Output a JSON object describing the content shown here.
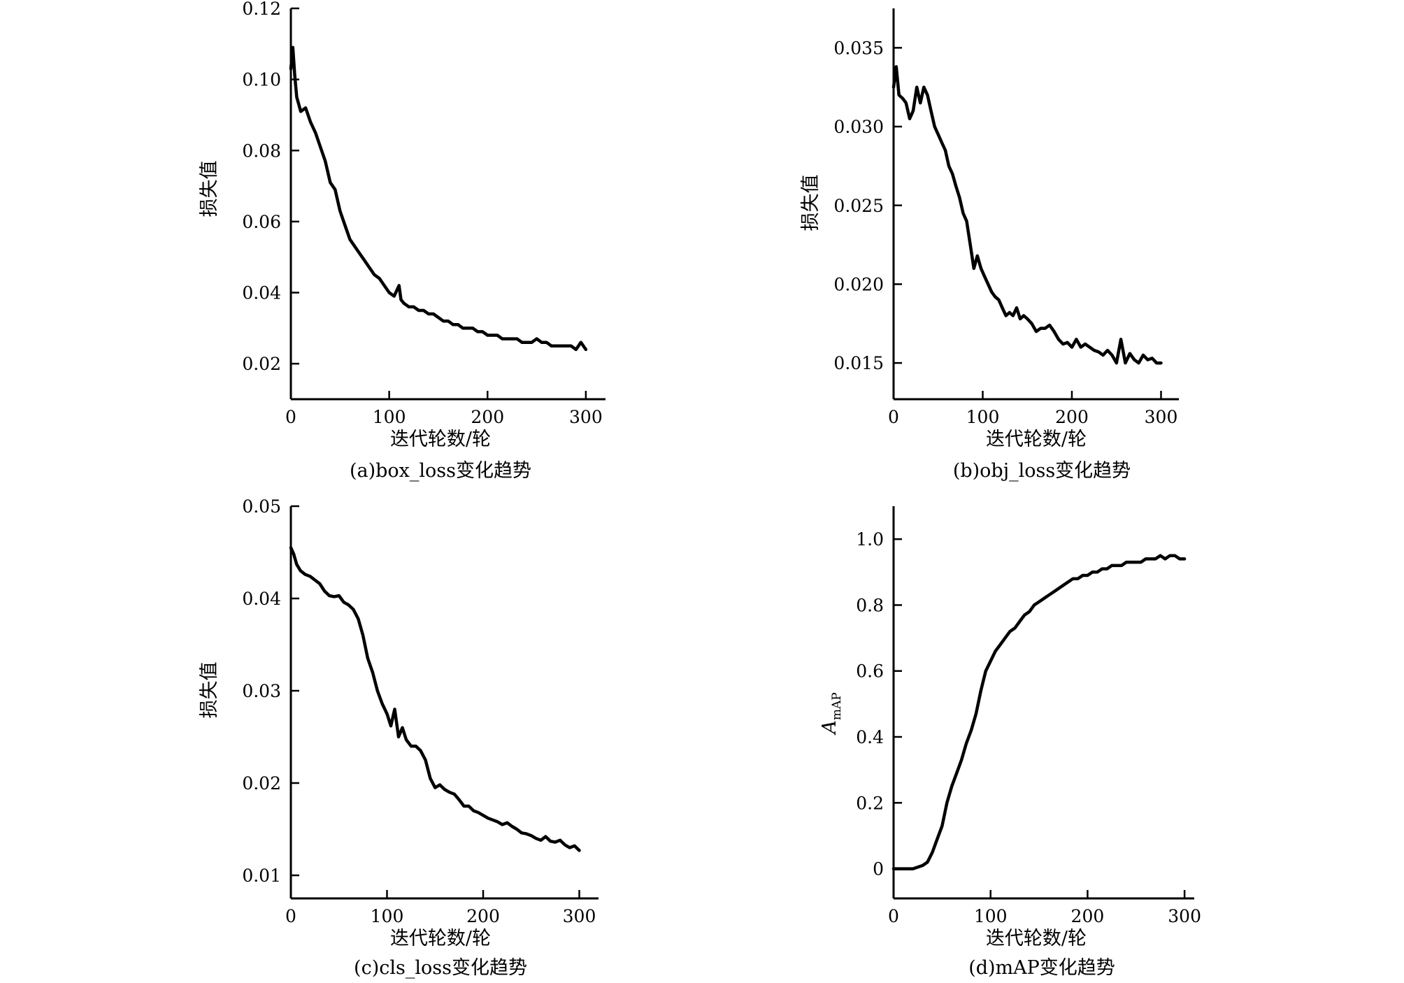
{
  "chart_data": [
    {
      "type": "line",
      "caption": "(a)box_loss变化趋势",
      "xlabel": "迭代轮数/轮",
      "ylabel": "损失值",
      "xlim": [
        0,
        320
      ],
      "ylim": [
        0.01,
        0.12
      ],
      "xticks": [
        0,
        100,
        200,
        300
      ],
      "xtick_labels": [
        "0",
        "100",
        "200",
        "300"
      ],
      "yticks": [
        0.02,
        0.04,
        0.06,
        0.08,
        0.1,
        0.12
      ],
      "ytick_labels": [
        "0.02",
        "0.04",
        "0.06",
        "0.08",
        "0.10",
        "0.12"
      ],
      "grid": false,
      "x": [
        0,
        2,
        4,
        6,
        8,
        10,
        15,
        20,
        25,
        30,
        35,
        40,
        45,
        50,
        55,
        60,
        65,
        70,
        75,
        80,
        85,
        90,
        95,
        100,
        105,
        110,
        112,
        115,
        120,
        125,
        130,
        135,
        140,
        145,
        150,
        155,
        160,
        165,
        170,
        175,
        180,
        185,
        190,
        195,
        200,
        205,
        210,
        215,
        220,
        225,
        230,
        235,
        240,
        245,
        250,
        255,
        260,
        265,
        270,
        275,
        280,
        285,
        290,
        295,
        300
      ],
      "y": [
        0.103,
        0.109,
        0.101,
        0.095,
        0.093,
        0.091,
        0.092,
        0.088,
        0.085,
        0.081,
        0.077,
        0.071,
        0.069,
        0.063,
        0.059,
        0.055,
        0.053,
        0.051,
        0.049,
        0.047,
        0.045,
        0.044,
        0.042,
        0.04,
        0.039,
        0.042,
        0.038,
        0.037,
        0.036,
        0.036,
        0.035,
        0.035,
        0.034,
        0.034,
        0.033,
        0.032,
        0.032,
        0.031,
        0.031,
        0.03,
        0.03,
        0.03,
        0.029,
        0.029,
        0.028,
        0.028,
        0.028,
        0.027,
        0.027,
        0.027,
        0.027,
        0.026,
        0.026,
        0.026,
        0.027,
        0.026,
        0.026,
        0.025,
        0.025,
        0.025,
        0.025,
        0.025,
        0.024,
        0.026,
        0.024
      ]
    },
    {
      "type": "line",
      "caption": "(b)obj_loss变化趋势",
      "xlabel": "迭代轮数/轮",
      "ylabel": "损失值",
      "xlim": [
        0,
        320
      ],
      "ylim": [
        0.0127,
        0.0375
      ],
      "xticks": [
        0,
        100,
        200,
        300
      ],
      "xtick_labels": [
        "0",
        "100",
        "200",
        "300"
      ],
      "yticks": [
        0.015,
        0.02,
        0.025,
        0.03,
        0.035
      ],
      "ytick_labels": [
        "0.015",
        "0.020",
        "0.025",
        "0.030",
        "0.035"
      ],
      "grid": false,
      "x": [
        0,
        3,
        6,
        10,
        14,
        18,
        22,
        26,
        30,
        34,
        38,
        42,
        46,
        50,
        54,
        58,
        62,
        66,
        70,
        74,
        78,
        82,
        86,
        90,
        94,
        98,
        102,
        106,
        110,
        114,
        118,
        122,
        126,
        130,
        134,
        138,
        142,
        146,
        150,
        155,
        160,
        165,
        170,
        175,
        180,
        185,
        190,
        195,
        200,
        205,
        210,
        215,
        220,
        225,
        230,
        235,
        240,
        245,
        250,
        255,
        260,
        265,
        270,
        275,
        280,
        285,
        290,
        295,
        300
      ],
      "y": [
        0.0325,
        0.0338,
        0.032,
        0.0318,
        0.0315,
        0.0305,
        0.031,
        0.0325,
        0.0315,
        0.0325,
        0.032,
        0.031,
        0.03,
        0.0295,
        0.029,
        0.0285,
        0.0275,
        0.027,
        0.0262,
        0.0255,
        0.0245,
        0.024,
        0.0225,
        0.021,
        0.0218,
        0.021,
        0.0205,
        0.02,
        0.0195,
        0.0192,
        0.019,
        0.0185,
        0.018,
        0.0182,
        0.018,
        0.0185,
        0.0178,
        0.018,
        0.0178,
        0.0175,
        0.017,
        0.0172,
        0.0172,
        0.0174,
        0.017,
        0.0165,
        0.0162,
        0.0163,
        0.016,
        0.0165,
        0.016,
        0.0162,
        0.016,
        0.0158,
        0.0157,
        0.0155,
        0.0158,
        0.0155,
        0.015,
        0.0165,
        0.015,
        0.0156,
        0.0152,
        0.015,
        0.0155,
        0.0152,
        0.0153,
        0.015,
        0.015
      ]
    },
    {
      "type": "line",
      "caption": "(c)cls_loss变化趋势",
      "xlabel": "迭代轮数/轮",
      "ylabel": "损失值",
      "xlim": [
        0,
        320
      ],
      "ylim": [
        0.0075,
        0.05
      ],
      "xticks": [
        0,
        100,
        200,
        300
      ],
      "xtick_labels": [
        "0",
        "100",
        "200",
        "300"
      ],
      "yticks": [
        0.01,
        0.02,
        0.03,
        0.04,
        0.05
      ],
      "ytick_labels": [
        "0.01",
        "0.02",
        "0.03",
        "0.04",
        "0.05"
      ],
      "grid": false,
      "x": [
        0,
        3,
        6,
        10,
        15,
        20,
        25,
        30,
        35,
        40,
        45,
        50,
        55,
        60,
        65,
        70,
        75,
        80,
        85,
        90,
        95,
        100,
        104,
        108,
        112,
        116,
        120,
        125,
        130,
        135,
        140,
        145,
        150,
        155,
        160,
        165,
        170,
        175,
        180,
        185,
        190,
        195,
        200,
        205,
        210,
        215,
        220,
        225,
        230,
        235,
        240,
        245,
        250,
        255,
        260,
        265,
        270,
        275,
        280,
        285,
        290,
        295,
        300
      ],
      "y": [
        0.0455,
        0.0448,
        0.0437,
        0.043,
        0.0426,
        0.0424,
        0.042,
        0.0416,
        0.0408,
        0.0403,
        0.0402,
        0.0403,
        0.0396,
        0.0393,
        0.0388,
        0.0378,
        0.036,
        0.0335,
        0.032,
        0.03,
        0.0286,
        0.0275,
        0.0262,
        0.028,
        0.025,
        0.026,
        0.0247,
        0.024,
        0.024,
        0.0235,
        0.0225,
        0.0205,
        0.0195,
        0.0198,
        0.0193,
        0.019,
        0.0188,
        0.0182,
        0.0175,
        0.0175,
        0.017,
        0.0168,
        0.0165,
        0.0162,
        0.016,
        0.0158,
        0.0155,
        0.0157,
        0.0153,
        0.015,
        0.0146,
        0.0145,
        0.0143,
        0.014,
        0.0138,
        0.0142,
        0.0137,
        0.0136,
        0.0138,
        0.0133,
        0.013,
        0.0132,
        0.0127
      ]
    },
    {
      "type": "line",
      "caption": "(d)mAP变化趋势",
      "xlabel": "迭代轮数/轮",
      "ylabel": "A",
      "ylabel_sub": "mAP",
      "xlim": [
        0,
        310
      ],
      "ylim": [
        -0.09,
        1.1
      ],
      "xticks": [
        0,
        100,
        200,
        300
      ],
      "xtick_labels": [
        "0",
        "100",
        "200",
        "300"
      ],
      "yticks": [
        0,
        0.2,
        0.4,
        0.6,
        0.8,
        1.0
      ],
      "ytick_labels": [
        "0",
        "0.2",
        "0.4",
        "0.6",
        "0.8",
        "1.0"
      ],
      "grid": false,
      "x": [
        0,
        5,
        10,
        15,
        20,
        25,
        30,
        35,
        40,
        45,
        50,
        55,
        60,
        65,
        70,
        75,
        80,
        85,
        90,
        95,
        100,
        105,
        110,
        115,
        120,
        125,
        130,
        135,
        140,
        145,
        150,
        155,
        160,
        165,
        170,
        175,
        180,
        185,
        190,
        195,
        200,
        205,
        210,
        215,
        220,
        225,
        230,
        235,
        240,
        245,
        250,
        255,
        260,
        265,
        270,
        275,
        280,
        285,
        290,
        295,
        300
      ],
      "y": [
        0.0,
        0.0,
        0.0,
        0.0,
        0.0,
        0.005,
        0.01,
        0.02,
        0.05,
        0.09,
        0.13,
        0.2,
        0.25,
        0.29,
        0.33,
        0.38,
        0.42,
        0.47,
        0.54,
        0.6,
        0.63,
        0.66,
        0.68,
        0.7,
        0.72,
        0.73,
        0.75,
        0.77,
        0.78,
        0.8,
        0.81,
        0.82,
        0.83,
        0.84,
        0.85,
        0.86,
        0.87,
        0.88,
        0.88,
        0.89,
        0.89,
        0.9,
        0.9,
        0.91,
        0.91,
        0.92,
        0.92,
        0.92,
        0.93,
        0.93,
        0.93,
        0.93,
        0.94,
        0.94,
        0.94,
        0.95,
        0.94,
        0.95,
        0.95,
        0.94,
        0.94
      ]
    }
  ]
}
